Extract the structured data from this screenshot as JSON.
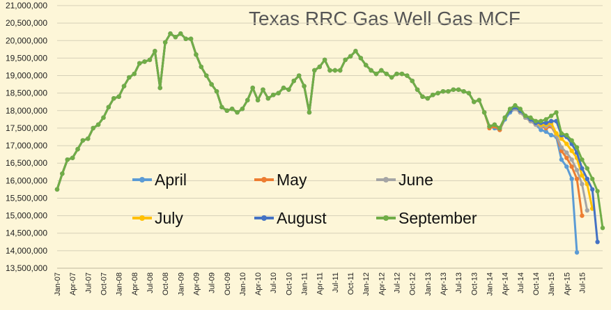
{
  "chart_data": {
    "type": "line",
    "title": "Texas RRC Gas Well Gas MCF",
    "ylim": [
      13500000,
      21000000
    ],
    "y_ticks": [
      "13,500,000",
      "14,000,000",
      "14,500,000",
      "15,000,000",
      "15,500,000",
      "16,000,000",
      "16,500,000",
      "17,000,000",
      "17,500,000",
      "18,000,000",
      "18,500,000",
      "19,000,000",
      "19,500,000",
      "20,000,000",
      "20,500,000",
      "21,000,000"
    ],
    "x_tick_labels": [
      "Jan-07",
      "Apr-07",
      "Jul-07",
      "Oct-07",
      "Jan-08",
      "Apr-08",
      "Jul-08",
      "Oct-08",
      "Jan-09",
      "Apr-09",
      "Jul-09",
      "Oct-09",
      "Jan-10",
      "Apr-10",
      "Jul-10",
      "Oct-10",
      "Jan-11",
      "Apr-11",
      "Jul-11",
      "Oct-11",
      "Jan-12",
      "Apr-12",
      "Jul-12",
      "Oct-12",
      "Jan-13",
      "Apr-13",
      "Jul-13",
      "Oct-13",
      "Jan-14",
      "Apr-14",
      "Jul-14",
      "Oct-14",
      "Jan-15",
      "Apr-15",
      "Jul-15"
    ],
    "x_start": "Jan-07",
    "grid": true,
    "legend_position": "inside-lower-center",
    "common_history": [
      15750000,
      16200000,
      16600000,
      16650000,
      16900000,
      17150000,
      17200000,
      17500000,
      17600000,
      17800000,
      18100000,
      18350000,
      18400000,
      18700000,
      18950000,
      19050000,
      19350000,
      19400000,
      19450000,
      19700000,
      18650000,
      19950000,
      20200000,
      20100000,
      20200000,
      20050000,
      20050000,
      19600000,
      19250000,
      19000000,
      18750000,
      18550000,
      18100000,
      18000000,
      18050000,
      17950000,
      18050000,
      18300000,
      18650000,
      18300000,
      18600000,
      18350000,
      18450000,
      18500000,
      18650000,
      18600000,
      18850000,
      19000000,
      18700000,
      17950000,
      19150000,
      19250000,
      19450000,
      19150000,
      19150000,
      19150000,
      19450000,
      19550000,
      19700000,
      19500000,
      19300000,
      19150000,
      19050000,
      19150000,
      19050000,
      18950000,
      19050000,
      19050000,
      19000000,
      18850000,
      18600000,
      18400000,
      18350000,
      18450000,
      18500000,
      18550000,
      18550000,
      18600000,
      18600000,
      18550000,
      18500000,
      18250000,
      18300000,
      17950000
    ],
    "series": [
      {
        "name": "April",
        "color": "#5b9bd5",
        "values": [
          17550000,
          17500000,
          17450000,
          17750000,
          17950000,
          18050000,
          17950000,
          17800000,
          17700000,
          17600000,
          17450000,
          17400000,
          17300000,
          17250000,
          16600000,
          16400000,
          16050000,
          13950000
        ]
      },
      {
        "name": "May",
        "color": "#ed7d31",
        "values": [
          17500000,
          17550000,
          17450000,
          17800000,
          18000000,
          18050000,
          17950000,
          17800000,
          17700000,
          17600000,
          17550000,
          17500000,
          17550000,
          17300000,
          16850000,
          16650000,
          16400000,
          16050000,
          15000000
        ]
      },
      {
        "name": "June",
        "color": "#a5a5a5",
        "values": [
          17550000,
          17600000,
          17500000,
          17800000,
          18000000,
          18050000,
          17950000,
          17800000,
          17700000,
          17600000,
          17550000,
          17550000,
          17600000,
          17300000,
          16950000,
          16800000,
          16600000,
          16300000,
          15900000,
          15150000
        ]
      },
      {
        "name": "July",
        "color": "#ffc000",
        "values": [
          17550000,
          17600000,
          17500000,
          17800000,
          18000000,
          18100000,
          18000000,
          17850000,
          17750000,
          17650000,
          17600000,
          17600000,
          17650000,
          17350000,
          17200000,
          17050000,
          16850000,
          16650000,
          16150000,
          15900000,
          15200000
        ]
      },
      {
        "name": "August",
        "color": "#4472c4",
        "values": [
          17550000,
          17600000,
          17500000,
          17800000,
          18000000,
          18100000,
          18000000,
          17850000,
          17750000,
          17650000,
          17650000,
          17650000,
          17700000,
          17700000,
          17300000,
          17250000,
          17050000,
          16800000,
          16350000,
          16050000,
          15750000,
          14250000
        ]
      },
      {
        "name": "September",
        "color": "#70ad47",
        "values": [
          17550000,
          17600000,
          17500000,
          17800000,
          18050000,
          18150000,
          18050000,
          17850000,
          17800000,
          17700000,
          17700000,
          17750000,
          17850000,
          17950000,
          17350000,
          17300000,
          17150000,
          16950000,
          16600000,
          16350000,
          16050000,
          15700000,
          14650000
        ]
      }
    ]
  }
}
